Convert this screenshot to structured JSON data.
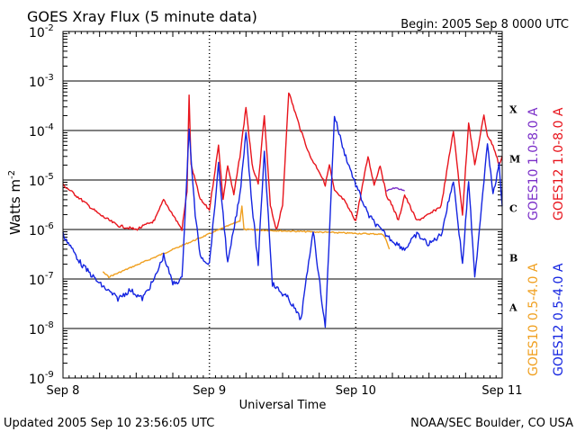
{
  "title": "GOES Xray Flux (5 minute data)",
  "begin_label": "Begin:  2005 Sep 8 0000 UTC",
  "updated_label": "Updated 2005 Sep 10 23:56:05 UTC",
  "source_label": "NOAA/SEC Boulder, CO USA",
  "colors": {
    "goes12_long": "#e8141c",
    "goes12_short": "#1424e0",
    "goes10_long": "#7a2ec8",
    "goes10_short": "#f0a020",
    "grid": "#000000"
  },
  "chart_data": {
    "type": "line",
    "title": "GOES Xray Flux (5 minute data)",
    "xlabel": "Universal Time",
    "ylabel": "Watts m-2",
    "ylabel_main": "Watts m",
    "ylabel_sup": "-2",
    "yscale": "log",
    "ylim": [
      1e-09,
      0.01
    ],
    "xlim": [
      "2005-09-08 00:00",
      "2005-09-11 00:00"
    ],
    "x_ticks": [
      "Sep 8",
      "Sep 9",
      "Sep 10",
      "Sep 11"
    ],
    "y_ticks": [
      {
        "base": "10",
        "exp": "-2"
      },
      {
        "base": "10",
        "exp": "-3"
      },
      {
        "base": "10",
        "exp": "-4"
      },
      {
        "base": "10",
        "exp": "-5"
      },
      {
        "base": "10",
        "exp": "-6"
      },
      {
        "base": "10",
        "exp": "-7"
      },
      {
        "base": "10",
        "exp": "-8"
      },
      {
        "base": "10",
        "exp": "-9"
      }
    ],
    "flare_classes": [
      {
        "label": "X",
        "level": "1e-4 to 1e-3"
      },
      {
        "label": "M",
        "level": "1e-5 to 1e-4"
      },
      {
        "label": "C",
        "level": "1e-6 to 1e-5"
      },
      {
        "label": "B",
        "level": "1e-7 to 1e-6"
      },
      {
        "label": "A",
        "level": "1e-8 to 1e-7"
      }
    ],
    "grid": true,
    "legend_placement": "right",
    "series": [
      {
        "name": "GOES12 1.0-8.0 A",
        "color": "#e8141c",
        "x": [
          "2005-09-08 00:00",
          "2005-09-08 03:00",
          "2005-09-08 06:00",
          "2005-09-08 09:00",
          "2005-09-08 12:00",
          "2005-09-08 15:00",
          "2005-09-08 16:30",
          "2005-09-08 18:00",
          "2005-09-08 19:30",
          "2005-09-08 20:20",
          "2005-09-08 20:40",
          "2005-09-08 21:00",
          "2005-09-08 21:40",
          "2005-09-08 22:30",
          "2005-09-09 00:00",
          "2005-09-09 01:30",
          "2005-09-09 02:15",
          "2005-09-09 03:00",
          "2005-09-09 04:00",
          "2005-09-09 05:00",
          "2005-09-09 06:00",
          "2005-09-09 07:00",
          "2005-09-09 08:00",
          "2005-09-09 09:00",
          "2005-09-09 10:00",
          "2005-09-09 10:20",
          "2005-09-09 11:00",
          "2005-09-09 12:00",
          "2005-09-09 13:00",
          "2005-09-09 15:00",
          "2005-09-09 16:30",
          "2005-09-09 18:00",
          "2005-09-09 19:00",
          "2005-09-09 19:40",
          "2005-09-09 20:30",
          "2005-09-09 22:00",
          "2005-09-10 00:00",
          "2005-09-10 02:00",
          "2005-09-10 03:00",
          "2005-09-10 04:00",
          "2005-09-10 05:00",
          "2005-09-10 06:00",
          "2005-09-10 07:00",
          "2005-09-10 08:00",
          "2005-09-10 10:00",
          "2005-09-10 12:00",
          "2005-09-10 14:00",
          "2005-09-10 16:00",
          "2005-09-10 17:30",
          "2005-09-10 18:30",
          "2005-09-10 19:30",
          "2005-09-10 21:00",
          "2005-09-10 21:35",
          "2005-09-10 22:30",
          "2005-09-10 23:30",
          "2005-09-11 00:00"
        ],
        "values": [
          8e-06,
          4e-06,
          2e-06,
          1.2e-06,
          1e-06,
          1.5e-06,
          4e-06,
          2e-06,
          1e-06,
          6e-06,
          0.0005,
          2e-05,
          1e-05,
          4e-06,
          2.5e-06,
          5e-05,
          4e-06,
          2e-05,
          5e-06,
          3e-05,
          0.0003,
          2e-05,
          8e-06,
          0.0002,
          3e-06,
          2e-06,
          1e-06,
          3e-06,
          0.0006,
          0.0001,
          3e-05,
          1.5e-05,
          8e-06,
          2e-05,
          6e-06,
          4e-06,
          1.5e-06,
          3e-05,
          8e-06,
          2e-05,
          5e-06,
          3e-06,
          1.5e-06,
          5e-06,
          1.5e-06,
          2e-06,
          3e-06,
          0.0001,
          2e-06,
          0.00015,
          2e-05,
          0.0002,
          8e-05,
          5e-05,
          2e-05,
          3e-05
        ]
      },
      {
        "name": "GOES12 0.5-4.0 A",
        "color": "#1424e0",
        "x": [
          "2005-09-08 00:00",
          "2005-09-08 03:00",
          "2005-09-08 06:00",
          "2005-09-08 09:00",
          "2005-09-08 11:00",
          "2005-09-08 13:00",
          "2005-09-08 15:00",
          "2005-09-08 16:30",
          "2005-09-08 18:00",
          "2005-09-08 19:30",
          "2005-09-08 20:40",
          "2005-09-08 21:40",
          "2005-09-08 22:30",
          "2005-09-09 00:00",
          "2005-09-09 01:30",
          "2005-09-09 03:00",
          "2005-09-09 05:00",
          "2005-09-09 06:00",
          "2005-09-09 07:00",
          "2005-09-09 08:00",
          "2005-09-09 09:00",
          "2005-09-09 10:20",
          "2005-09-09 12:00",
          "2005-09-09 13:00",
          "2005-09-09 15:00",
          "2005-09-09 17:00",
          "2005-09-09 19:00",
          "2005-09-09 20:30",
          "2005-09-09 22:00",
          "2005-09-10 00:00",
          "2005-09-10 02:00",
          "2005-09-10 04:00",
          "2005-09-10 06:00",
          "2005-09-10 08:00",
          "2005-09-10 10:00",
          "2005-09-10 12:00",
          "2005-09-10 14:00",
          "2005-09-10 16:00",
          "2005-09-10 17:30",
          "2005-09-10 18:30",
          "2005-09-10 19:30",
          "2005-09-10 21:00",
          "2005-09-10 21:35",
          "2005-09-10 22:30",
          "2005-09-10 23:30",
          "2005-09-11 00:00"
        ],
        "values": [
          8e-07,
          2e-07,
          8e-08,
          4e-08,
          6e-08,
          4e-08,
          1e-07,
          3e-07,
          8e-08,
          1e-07,
          0.0001,
          2e-06,
          3e-07,
          2e-07,
          2e-05,
          2e-07,
          5e-06,
          0.0001,
          3e-06,
          2e-07,
          4e-05,
          8e-08,
          5e-08,
          4e-08,
          1.5e-08,
          1e-06,
          1e-08,
          0.0002,
          4e-05,
          8e-06,
          2e-06,
          1e-06,
          6e-07,
          4e-07,
          8e-07,
          5e-07,
          8e-07,
          1e-05,
          2e-07,
          1e-05,
          1e-07,
          1e-05,
          6e-05,
          5e-06,
          2e-05,
          3e-06
        ]
      },
      {
        "name": "GOES10 1.0-8.0 A",
        "color": "#7a2ec8",
        "x": [
          "2005-09-10 05:00",
          "2005-09-10 06:30",
          "2005-09-10 08:00"
        ],
        "values": [
          6e-06,
          7e-06,
          6e-06
        ]
      },
      {
        "name": "GOES10 0.5-4.0 A",
        "color": "#f0a020",
        "x": [
          "2005-09-08 06:30",
          "2005-09-08 07:30",
          "2005-09-09 05:00",
          "2005-09-09 05:20",
          "2005-09-09 05:40",
          "2005-09-10 04:30",
          "2005-09-10 05:00",
          "2005-09-10 05:30"
        ],
        "values": [
          1.4e-07,
          1.1e-07,
          1.5e-06,
          3e-06,
          1e-06,
          8e-07,
          6e-07,
          4e-07
        ]
      }
    ]
  }
}
